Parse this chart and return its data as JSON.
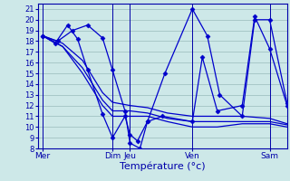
{
  "background_color": "#cde8e8",
  "grid_color": "#99bbbb",
  "line_color": "#0000cc",
  "spine_color": "#0000aa",
  "title": "Température (°c)",
  "xlim": [
    0,
    100
  ],
  "ylim": [
    8,
    21.5
  ],
  "yticks": [
    8,
    9,
    10,
    11,
    12,
    13,
    14,
    15,
    16,
    17,
    18,
    19,
    20,
    21
  ],
  "xtick_positions": [
    2,
    30,
    37,
    62,
    93
  ],
  "xtick_labels": [
    "Mer",
    "Dim",
    "Jeu",
    "Ven",
    "Sam"
  ],
  "vlines": [
    2,
    30,
    37,
    62,
    93
  ],
  "series": [
    {
      "x": [
        2,
        10,
        18,
        26,
        30,
        37,
        44,
        52,
        62,
        72,
        82,
        93,
        100
      ],
      "y": [
        18.5,
        17.5,
        15.5,
        12.5,
        11.5,
        11.5,
        11.3,
        10.8,
        10.5,
        10.5,
        10.5,
        10.5,
        10.2
      ],
      "marker": null
    },
    {
      "x": [
        2,
        10,
        18,
        26,
        30,
        37,
        44,
        52,
        62,
        72,
        82,
        93,
        100
      ],
      "y": [
        18.5,
        17.8,
        16.2,
        13.2,
        12.3,
        12.0,
        11.8,
        11.3,
        11.0,
        11.0,
        11.0,
        10.8,
        10.3
      ],
      "marker": null
    },
    {
      "x": [
        2,
        10,
        18,
        26,
        30,
        37,
        44,
        52,
        62,
        72,
        82,
        93,
        100
      ],
      "y": [
        18.5,
        17.5,
        15.0,
        12.0,
        11.0,
        11.0,
        11.0,
        10.5,
        10.0,
        10.0,
        10.3,
        10.3,
        10.0
      ],
      "marker": null
    },
    {
      "x": [
        2,
        8,
        14,
        20,
        26,
        30,
        35,
        37,
        41,
        44,
        51,
        62,
        68,
        73,
        82,
        87,
        93,
        100
      ],
      "y": [
        18.5,
        18.0,
        19.0,
        19.5,
        18.3,
        15.3,
        11.5,
        8.5,
        8.0,
        10.5,
        15.0,
        21.0,
        18.5,
        13.0,
        11.0,
        20.0,
        20.0,
        12.2
      ],
      "marker": "D"
    },
    {
      "x": [
        2,
        7,
        12,
        16,
        20,
        26,
        30,
        35,
        37,
        40,
        44,
        50,
        62,
        66,
        72,
        82,
        87,
        93,
        100
      ],
      "y": [
        18.5,
        17.8,
        19.5,
        18.2,
        15.3,
        11.2,
        9.0,
        11.0,
        9.3,
        8.7,
        10.5,
        11.0,
        10.5,
        16.5,
        11.5,
        12.0,
        20.3,
        17.3,
        12.0
      ],
      "marker": "D"
    }
  ]
}
